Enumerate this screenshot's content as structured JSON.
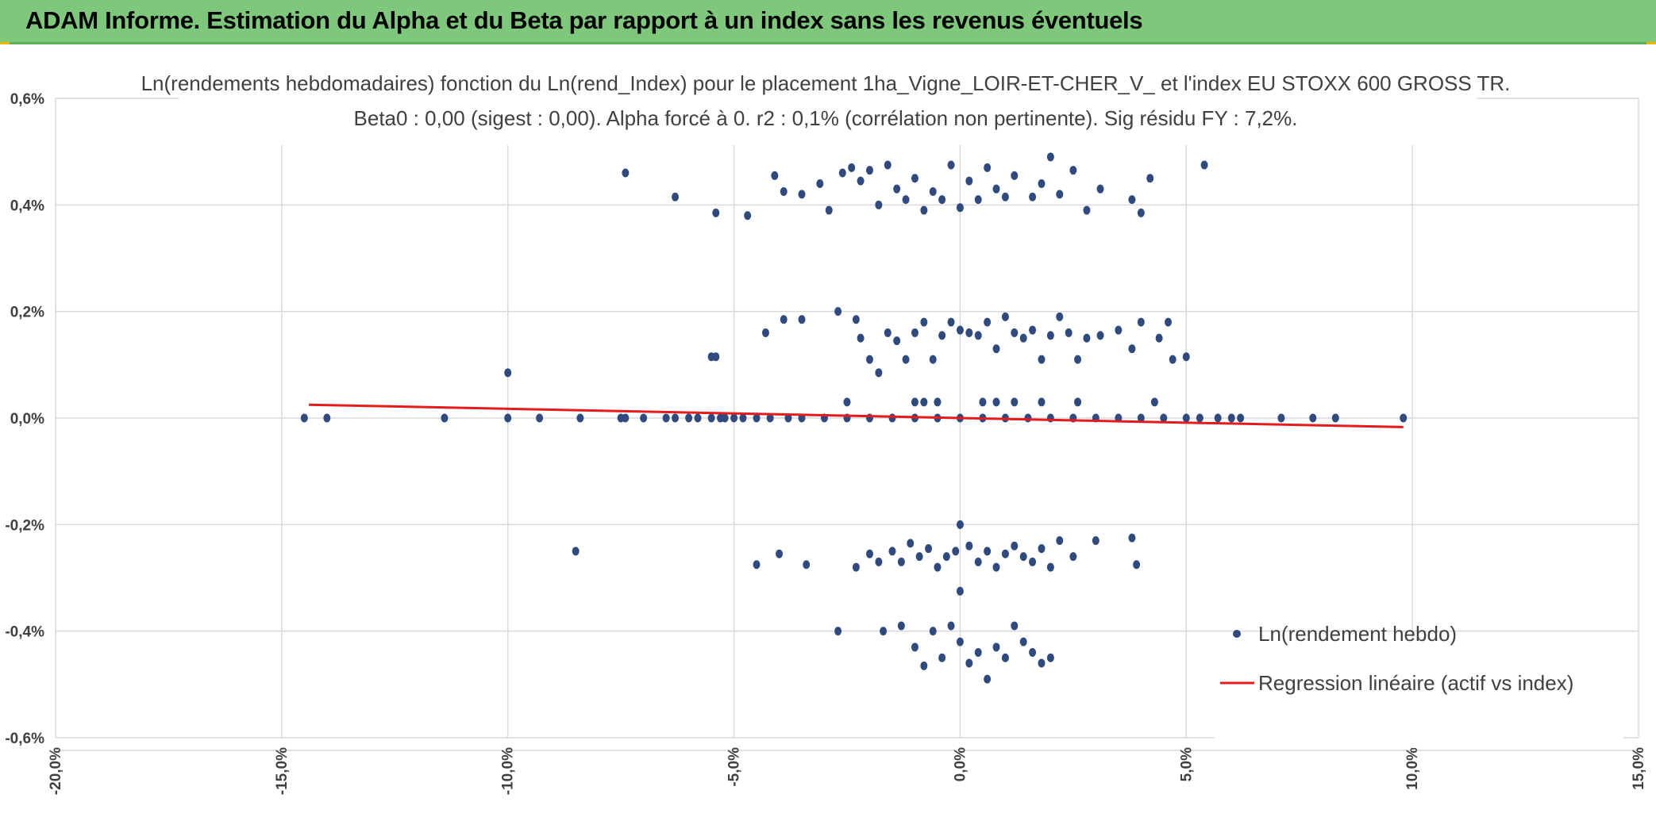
{
  "header": {
    "title": "ADAM Informe. Estimation du Alpha et du Beta par rapport à un index sans les revenus éventuels"
  },
  "colors": {
    "header_bg": "#7dc87a",
    "points": "#2e4a7e",
    "regression": "#e41c1c",
    "grid": "#d9d9d9",
    "text": "#404040"
  },
  "chart_data": {
    "type": "scatter",
    "title": "Ln(rendements hebdomadaires) fonction du Ln(rend_Index) pour le placement 1ha_Vigne_LOIR-ET-CHER_V_ et l'index EU STOXX 600 GROSS TR.",
    "subtitle": "Beta0 : 0,00 (sigest : 0,00). Alpha forcé à 0. r2 : 0,1% (corrélation non pertinente). Sig résidu FY : 7,2%.",
    "xlim": [
      -0.2,
      0.15
    ],
    "ylim": [
      -0.006,
      0.006
    ],
    "x_ticks": [
      -0.2,
      -0.15,
      -0.1,
      -0.05,
      0.0,
      0.05,
      0.1,
      0.15
    ],
    "x_tick_labels": [
      "-20,0%",
      "-15,0%",
      "-10,0%",
      "-5,0%",
      "0,0%",
      "5,0%",
      "10,0%",
      "15,0%"
    ],
    "y_ticks": [
      0.006,
      0.004,
      0.002,
      0.0,
      -0.002,
      -0.004,
      -0.006
    ],
    "y_tick_labels": [
      "0,6%",
      "0,4%",
      "0,2%",
      "0,0%",
      "-0,2%",
      "-0,4%",
      "-0,6%"
    ],
    "grid": true,
    "legend_position": "bottom-right",
    "series": [
      {
        "name": "Ln(rendement hebdo)",
        "kind": "scatter",
        "points": [
          [
            -0.145,
            0.0
          ],
          [
            -0.14,
            0.0
          ],
          [
            -0.114,
            0.0
          ],
          [
            -0.1,
            0.0
          ],
          [
            -0.093,
            0.0
          ],
          [
            -0.084,
            0.0
          ],
          [
            -0.075,
            0.0
          ],
          [
            -0.074,
            0.0
          ],
          [
            -0.07,
            0.0
          ],
          [
            -0.065,
            0.0
          ],
          [
            -0.063,
            0.0
          ],
          [
            -0.06,
            0.0
          ],
          [
            -0.058,
            0.0
          ],
          [
            -0.055,
            0.0
          ],
          [
            -0.053,
            0.0
          ],
          [
            -0.052,
            0.0
          ],
          [
            -0.05,
            0.0
          ],
          [
            -0.048,
            0.0
          ],
          [
            -0.045,
            0.0
          ],
          [
            -0.042,
            0.0
          ],
          [
            -0.038,
            0.0
          ],
          [
            -0.035,
            0.0
          ],
          [
            -0.03,
            0.0
          ],
          [
            -0.025,
            0.0
          ],
          [
            -0.02,
            0.0
          ],
          [
            -0.015,
            0.0
          ],
          [
            -0.01,
            0.0
          ],
          [
            -0.005,
            0.0
          ],
          [
            0.0,
            0.0
          ],
          [
            0.005,
            0.0
          ],
          [
            0.01,
            0.0
          ],
          [
            0.015,
            0.0
          ],
          [
            0.02,
            0.0
          ],
          [
            0.025,
            0.0
          ],
          [
            0.03,
            0.0
          ],
          [
            0.035,
            0.0
          ],
          [
            0.04,
            0.0
          ],
          [
            0.045,
            0.0
          ],
          [
            0.05,
            0.0
          ],
          [
            0.053,
            0.0
          ],
          [
            0.057,
            0.0
          ],
          [
            0.06,
            0.0
          ],
          [
            0.062,
            0.0
          ],
          [
            0.071,
            0.0
          ],
          [
            0.078,
            0.0
          ],
          [
            0.083,
            0.0
          ],
          [
            0.098,
            0.0
          ],
          [
            -0.1,
            0.00085
          ],
          [
            -0.055,
            0.00115
          ],
          [
            -0.054,
            0.00115
          ],
          [
            -0.043,
            0.0016
          ],
          [
            -0.039,
            0.00185
          ],
          [
            -0.035,
            0.00185
          ],
          [
            -0.027,
            0.002
          ],
          [
            -0.023,
            0.00185
          ],
          [
            -0.022,
            0.0015
          ],
          [
            -0.02,
            0.0011
          ],
          [
            -0.018,
            0.00085
          ],
          [
            -0.016,
            0.0016
          ],
          [
            -0.014,
            0.00145
          ],
          [
            -0.012,
            0.0011
          ],
          [
            -0.01,
            0.0016
          ],
          [
            -0.008,
            0.0018
          ],
          [
            -0.006,
            0.0011
          ],
          [
            -0.004,
            0.00155
          ],
          [
            -0.002,
            0.0018
          ],
          [
            0.0,
            0.00165
          ],
          [
            0.002,
            0.0016
          ],
          [
            0.004,
            0.00155
          ],
          [
            0.006,
            0.0018
          ],
          [
            0.008,
            0.0013
          ],
          [
            0.01,
            0.0019
          ],
          [
            0.012,
            0.0016
          ],
          [
            0.014,
            0.0015
          ],
          [
            0.016,
            0.00165
          ],
          [
            0.018,
            0.0011
          ],
          [
            0.02,
            0.00155
          ],
          [
            0.022,
            0.0019
          ],
          [
            0.024,
            0.0016
          ],
          [
            0.026,
            0.0011
          ],
          [
            0.028,
            0.0015
          ],
          [
            0.031,
            0.00155
          ],
          [
            0.035,
            0.00165
          ],
          [
            0.038,
            0.0013
          ],
          [
            0.04,
            0.0018
          ],
          [
            0.044,
            0.0015
          ],
          [
            0.046,
            0.0018
          ],
          [
            0.047,
            0.0011
          ],
          [
            0.05,
            0.00115
          ],
          [
            -0.025,
            0.0003
          ],
          [
            -0.01,
            0.0003
          ],
          [
            -0.008,
            0.0003
          ],
          [
            -0.005,
            0.0003
          ],
          [
            0.005,
            0.0003
          ],
          [
            0.008,
            0.0003
          ],
          [
            0.012,
            0.0003
          ],
          [
            0.018,
            0.0003
          ],
          [
            0.026,
            0.0003
          ],
          [
            0.043,
            0.0003
          ],
          [
            -0.074,
            0.0046
          ],
          [
            -0.063,
            0.00415
          ],
          [
            -0.054,
            0.00385
          ],
          [
            -0.047,
            0.0038
          ],
          [
            -0.041,
            0.00455
          ],
          [
            -0.039,
            0.00425
          ],
          [
            -0.035,
            0.0042
          ],
          [
            -0.031,
            0.0044
          ],
          [
            -0.029,
            0.0039
          ],
          [
            -0.026,
            0.0046
          ],
          [
            -0.024,
            0.0047
          ],
          [
            -0.022,
            0.00445
          ],
          [
            -0.02,
            0.00465
          ],
          [
            -0.018,
            0.004
          ],
          [
            -0.016,
            0.00475
          ],
          [
            -0.014,
            0.0043
          ],
          [
            -0.012,
            0.0041
          ],
          [
            -0.01,
            0.0045
          ],
          [
            -0.008,
            0.0039
          ],
          [
            -0.006,
            0.00425
          ],
          [
            -0.004,
            0.0041
          ],
          [
            -0.002,
            0.00475
          ],
          [
            0.0,
            0.00395
          ],
          [
            0.002,
            0.00445
          ],
          [
            0.004,
            0.0041
          ],
          [
            0.006,
            0.0047
          ],
          [
            0.008,
            0.0043
          ],
          [
            0.01,
            0.00415
          ],
          [
            0.012,
            0.00455
          ],
          [
            0.016,
            0.00415
          ],
          [
            0.018,
            0.0044
          ],
          [
            0.02,
            0.0049
          ],
          [
            0.022,
            0.0042
          ],
          [
            0.025,
            0.00465
          ],
          [
            0.028,
            0.0039
          ],
          [
            0.031,
            0.0043
          ],
          [
            0.038,
            0.0041
          ],
          [
            0.04,
            0.00385
          ],
          [
            0.042,
            0.0045
          ],
          [
            0.054,
            0.00475
          ],
          [
            -0.085,
            -0.0025
          ],
          [
            -0.045,
            -0.00275
          ],
          [
            -0.04,
            -0.00255
          ],
          [
            -0.034,
            -0.00275
          ],
          [
            -0.023,
            -0.0028
          ],
          [
            -0.02,
            -0.00255
          ],
          [
            -0.018,
            -0.0027
          ],
          [
            -0.015,
            -0.0025
          ],
          [
            -0.013,
            -0.0027
          ],
          [
            -0.011,
            -0.00235
          ],
          [
            -0.009,
            -0.0026
          ],
          [
            -0.007,
            -0.00245
          ],
          [
            -0.005,
            -0.0028
          ],
          [
            -0.003,
            -0.0026
          ],
          [
            -0.001,
            -0.0025
          ],
          [
            0.0,
            -0.002
          ],
          [
            0.0,
            -0.00325
          ],
          [
            0.002,
            -0.0024
          ],
          [
            0.004,
            -0.0027
          ],
          [
            0.006,
            -0.0025
          ],
          [
            0.008,
            -0.0028
          ],
          [
            0.01,
            -0.00255
          ],
          [
            0.012,
            -0.0024
          ],
          [
            0.014,
            -0.0026
          ],
          [
            0.016,
            -0.0027
          ],
          [
            0.018,
            -0.00245
          ],
          [
            0.02,
            -0.0028
          ],
          [
            0.022,
            -0.0023
          ],
          [
            0.025,
            -0.0026
          ],
          [
            0.03,
            -0.0023
          ],
          [
            0.038,
            -0.00225
          ],
          [
            0.039,
            -0.00275
          ],
          [
            -0.027,
            -0.004
          ],
          [
            -0.017,
            -0.004
          ],
          [
            -0.013,
            -0.0039
          ],
          [
            -0.01,
            -0.0043
          ],
          [
            -0.008,
            -0.00465
          ],
          [
            -0.006,
            -0.004
          ],
          [
            -0.004,
            -0.0045
          ],
          [
            -0.002,
            -0.0039
          ],
          [
            0.0,
            -0.0042
          ],
          [
            0.002,
            -0.0046
          ],
          [
            0.004,
            -0.0044
          ],
          [
            0.006,
            -0.0049
          ],
          [
            0.008,
            -0.0043
          ],
          [
            0.01,
            -0.0045
          ],
          [
            0.012,
            -0.0039
          ],
          [
            0.014,
            -0.0042
          ],
          [
            0.016,
            -0.0044
          ],
          [
            0.018,
            -0.0046
          ],
          [
            0.02,
            -0.0045
          ]
        ]
      },
      {
        "name": "Regression linéaire (actif vs index)",
        "kind": "line",
        "points": [
          [
            -0.144,
            0.00025
          ],
          [
            0.098,
            -0.00017
          ]
        ]
      }
    ]
  }
}
